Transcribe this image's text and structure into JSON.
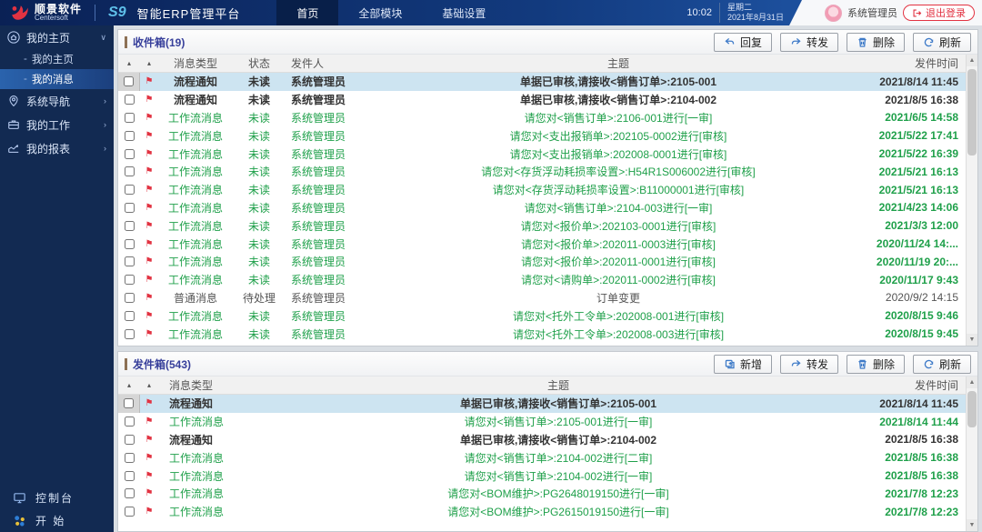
{
  "header": {
    "brand": {
      "name_cn": "顺景软件",
      "name_en": "Centersoft",
      "product_code": "S9",
      "product_name": "智能ERP管理平台"
    },
    "nav": {
      "home": "首页",
      "modules": "全部模块",
      "settings": "基础设置"
    },
    "clock": {
      "time": "10:02",
      "weekday": "星期二",
      "date": "2021年8月31日"
    },
    "user": {
      "name": "系统管理员",
      "logout_label": "退出登录"
    },
    "colors": {
      "accent_red": "#e23342",
      "header_blue": "#123a7e"
    }
  },
  "sidebar": {
    "bullet": "-",
    "my_home": {
      "label": "我的主页",
      "chevron": "∨"
    },
    "sub_home": {
      "label": "我的主页"
    },
    "sub_messages": {
      "label": "我的消息"
    },
    "nav_system": {
      "label": "系统导航",
      "chevron": "›"
    },
    "my_work": {
      "label": "我的工作",
      "chevron": "›"
    },
    "my_reports": {
      "label": "我的报表",
      "chevron": "›"
    },
    "console": {
      "label": "控制台"
    },
    "start": {
      "label": "开 始"
    }
  },
  "inbox": {
    "title": "收件箱(19)",
    "buttons": {
      "reply": "回复",
      "forward": "转发",
      "delete": "删除",
      "refresh": "刷新"
    },
    "columns": {
      "sort_a": "▴",
      "sort_b": "▴",
      "type": "消息类型",
      "status": "状态",
      "sender": "发件人",
      "subject": "主题",
      "time": "发件时间"
    },
    "rows": [
      {
        "tone": "dark",
        "selected": true,
        "type": "流程通知",
        "status": "未读",
        "sender": "系统管理员",
        "subject": "单据已审核,请接收<销售订单>:2105-001",
        "time": "2021/8/14 11:45"
      },
      {
        "tone": "dark",
        "selected": false,
        "type": "流程通知",
        "status": "未读",
        "sender": "系统管理员",
        "subject": "单据已审核,请接收<销售订单>:2104-002",
        "time": "2021/8/5 16:38"
      },
      {
        "tone": "green",
        "selected": false,
        "type": "工作流消息",
        "status": "未读",
        "sender": "系统管理员",
        "subject": "请您对<销售订单>:2106-001进行[一审]",
        "time": "2021/6/5 14:58"
      },
      {
        "tone": "green",
        "selected": false,
        "type": "工作流消息",
        "status": "未读",
        "sender": "系统管理员",
        "subject": "请您对<支出报销单>:202105-0002进行[审核]",
        "time": "2021/5/22 17:41"
      },
      {
        "tone": "green",
        "selected": false,
        "type": "工作流消息",
        "status": "未读",
        "sender": "系统管理员",
        "subject": "请您对<支出报销单>:202008-0001进行[审核]",
        "time": "2021/5/22 16:39"
      },
      {
        "tone": "green",
        "selected": false,
        "type": "工作流消息",
        "status": "未读",
        "sender": "系统管理员",
        "subject": "请您对<存货浮动耗损率设置>:H54R1S006002进行[审核]",
        "time": "2021/5/21 16:13"
      },
      {
        "tone": "green",
        "selected": false,
        "type": "工作流消息",
        "status": "未读",
        "sender": "系统管理员",
        "subject": "请您对<存货浮动耗损率设置>:B11000001进行[审核]",
        "time": "2021/5/21 16:13"
      },
      {
        "tone": "green",
        "selected": false,
        "type": "工作流消息",
        "status": "未读",
        "sender": "系统管理员",
        "subject": "请您对<销售订单>:2104-003进行[一审]",
        "time": "2021/4/23 14:06"
      },
      {
        "tone": "green",
        "selected": false,
        "type": "工作流消息",
        "status": "未读",
        "sender": "系统管理员",
        "subject": "请您对<报价单>:202103-0001进行[审核]",
        "time": "2021/3/3 12:00"
      },
      {
        "tone": "green",
        "selected": false,
        "type": "工作流消息",
        "status": "未读",
        "sender": "系统管理员",
        "subject": "请您对<报价单>:202011-0003进行[审核]",
        "time": "2020/11/24 14:..."
      },
      {
        "tone": "green",
        "selected": false,
        "type": "工作流消息",
        "status": "未读",
        "sender": "系统管理员",
        "subject": "请您对<报价单>:202011-0001进行[审核]",
        "time": "2020/11/19 20:..."
      },
      {
        "tone": "green",
        "selected": false,
        "type": "工作流消息",
        "status": "未读",
        "sender": "系统管理员",
        "subject": "请您对<请购单>:202011-0002进行[审核]",
        "time": "2020/11/17 9:43"
      },
      {
        "tone": "plain",
        "selected": false,
        "type": "普通消息",
        "status": "待处理",
        "sender": "系统管理员",
        "subject": "订单变更",
        "time": "2020/9/2 14:15"
      },
      {
        "tone": "green",
        "selected": false,
        "type": "工作流消息",
        "status": "未读",
        "sender": "系统管理员",
        "subject": "请您对<托外工令单>:202008-001进行[审核]",
        "time": "2020/8/15 9:46"
      },
      {
        "tone": "green",
        "selected": false,
        "type": "工作流消息",
        "status": "未读",
        "sender": "系统管理员",
        "subject": "请您对<托外工令单>:202008-003进行[审核]",
        "time": "2020/8/15 9:45"
      }
    ]
  },
  "outbox": {
    "title": "发件箱(543)",
    "buttons": {
      "new": "新增",
      "forward": "转发",
      "delete": "删除",
      "refresh": "刷新"
    },
    "columns": {
      "sort_a": "▴",
      "sort_b": "▴",
      "type": "消息类型",
      "subject": "主题",
      "time": "发件时间"
    },
    "rows": [
      {
        "tone": "dark",
        "selected": true,
        "type": "流程通知",
        "subject": "单据已审核,请接收<销售订单>:2105-001",
        "time": "2021/8/14 11:45"
      },
      {
        "tone": "green",
        "selected": false,
        "type": "工作流消息",
        "subject": "请您对<销售订单>:2105-001进行[一审]",
        "time": "2021/8/14 11:44"
      },
      {
        "tone": "dark",
        "selected": false,
        "type": "流程通知",
        "subject": "单据已审核,请接收<销售订单>:2104-002",
        "time": "2021/8/5 16:38"
      },
      {
        "tone": "green",
        "selected": false,
        "type": "工作流消息",
        "subject": "请您对<销售订单>:2104-002进行[二审]",
        "time": "2021/8/5 16:38"
      },
      {
        "tone": "green",
        "selected": false,
        "type": "工作流消息",
        "subject": "请您对<销售订单>:2104-002进行[一审]",
        "time": "2021/8/5 16:38"
      },
      {
        "tone": "green",
        "selected": false,
        "type": "工作流消息",
        "subject": "请您对<BOM维护>:PG2648019150进行[一审]",
        "time": "2021/7/8 12:23"
      },
      {
        "tone": "green",
        "selected": false,
        "type": "工作流消息",
        "subject": "请您对<BOM维护>:PG2615019150进行[一审]",
        "time": "2021/7/8 12:23"
      }
    ]
  }
}
